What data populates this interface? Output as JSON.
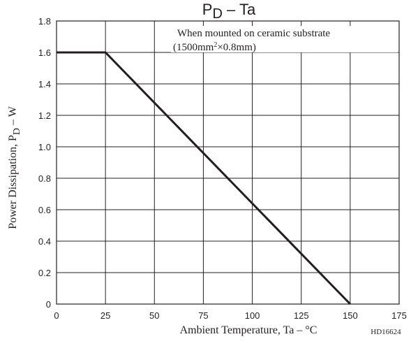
{
  "chart_data": {
    "type": "line",
    "title": {
      "main": "P",
      "sub": "D",
      "rest": " – Ta"
    },
    "xlabel": "Ambient Temperature, Ta – °C",
    "ylabel": {
      "prefix": "Power Dissipation, P",
      "sub": "D",
      "suffix": " – W"
    },
    "xlim": [
      0,
      175
    ],
    "ylim": [
      0,
      1.8
    ],
    "xticks": [
      0,
      25,
      50,
      75,
      100,
      125,
      150,
      175
    ],
    "xtick_labels": [
      "0",
      "25",
      "50",
      "75",
      "100",
      "125",
      "150",
      "175"
    ],
    "yticks": [
      0,
      0.2,
      0.4,
      0.6,
      0.8,
      1.0,
      1.2,
      1.4,
      1.6,
      1.8
    ],
    "ytick_labels": [
      "0",
      "0.2",
      "0.4",
      "0.6",
      "0.8",
      "1.0",
      "1.2",
      "1.4",
      "1.6",
      "1.8"
    ],
    "grid": true,
    "series": [
      {
        "x": [
          0,
          25,
          150
        ],
        "y": [
          1.6,
          1.6,
          0
        ]
      }
    ],
    "annotation": {
      "line1": "When mounted on ceramic substrate",
      "line2_pre": "(1500mm",
      "line2_sup": "2",
      "line2_post": "×0.8mm)"
    },
    "code": "HD16624"
  }
}
